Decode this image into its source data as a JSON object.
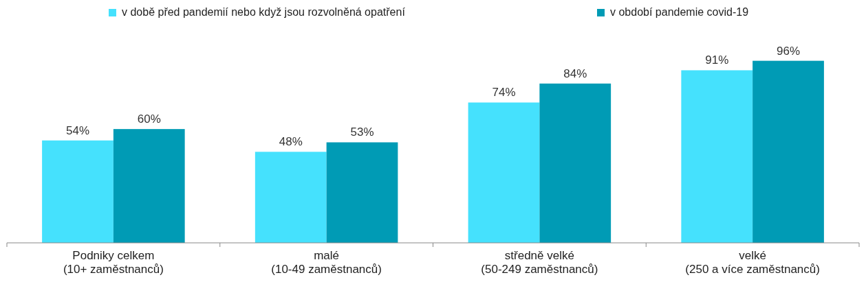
{
  "chart_data": {
    "type": "bar",
    "categories": [
      "Podniky celkem\n(10+ zaměstnanců)",
      "malé\n(10-49 zaměstnanců)",
      "středně velké\n(50-249 zaměstnanců)",
      "velké\n(250 a více zaměstnanců)"
    ],
    "series": [
      {
        "name": "v době před pandemií nebo když jsou rozvolněná opatření",
        "color": "#45e1fd",
        "values": [
          54,
          48,
          74,
          91
        ],
        "value_labels": [
          "54%",
          "48%",
          "74%",
          "91%"
        ]
      },
      {
        "name": "v období pandemie covid-19",
        "color": "#009bb5",
        "values": [
          60,
          53,
          84,
          96
        ],
        "value_labels": [
          "60%",
          "53%",
          "84%",
          "96%"
        ]
      }
    ],
    "legend": "top",
    "grid": false
  }
}
